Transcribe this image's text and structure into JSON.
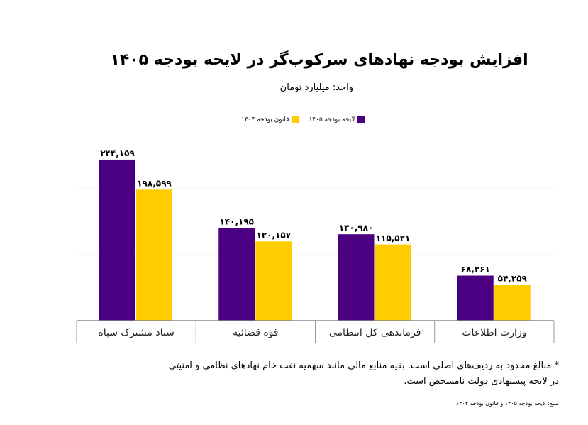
{
  "title": "افزایش بودجه نهادهای سرکوب‌گر در لایحه بودجه ۱۴۰۵",
  "subtitle": "واحد: میلیارد تومان",
  "footnote_line1": "* مبالغ محدود به ردیف‌های اصلی است. بقیه منابع مالی مانند سهمیه نفت خام نهادهای نظامی و امنیتی",
  "footnote_line2": "در لایحه پیشنهادی دولت نامشخص است.",
  "source": "منبع: لایحه بودجه ۱۴۰۵ و قانون بودجه ۱۴۰۴",
  "chart_data": {
    "type": "bar",
    "title": "افزایش بودجه نهادهای سرکوب‌گر در لایحه بودجه ۱۴۰۵",
    "categories": [
      "ستاد مشترک سپاه",
      "قوه قضائیه",
      "فرماندهی کل انتظامی",
      "وزارت اطلاعات"
    ],
    "series": [
      {
        "name": "لایحه بودجه ۱۴۰۵",
        "color": "#4b0082",
        "values": [
          244159,
          140195,
          130980,
          68261
        ],
        "labels": [
          "۲۴۴,۱۵۹",
          "۱۴۰,۱۹۵",
          "۱۳۰,۹۸۰",
          "۶۸,۲۶۱"
        ]
      },
      {
        "name": "قانون بودجه ۱۴۰۴",
        "color": "#ffcc00",
        "values": [
          198599,
          120157,
          115521,
          54259
        ],
        "labels": [
          "۱۹۸,۵۹۹",
          "۱۲۰,۱۵۷",
          "۱۱۵,۵۲۱",
          "۵۴,۲۵۹"
        ]
      }
    ],
    "ylim": [
      0,
      300000
    ],
    "grid": true,
    "legend": "top-center"
  }
}
